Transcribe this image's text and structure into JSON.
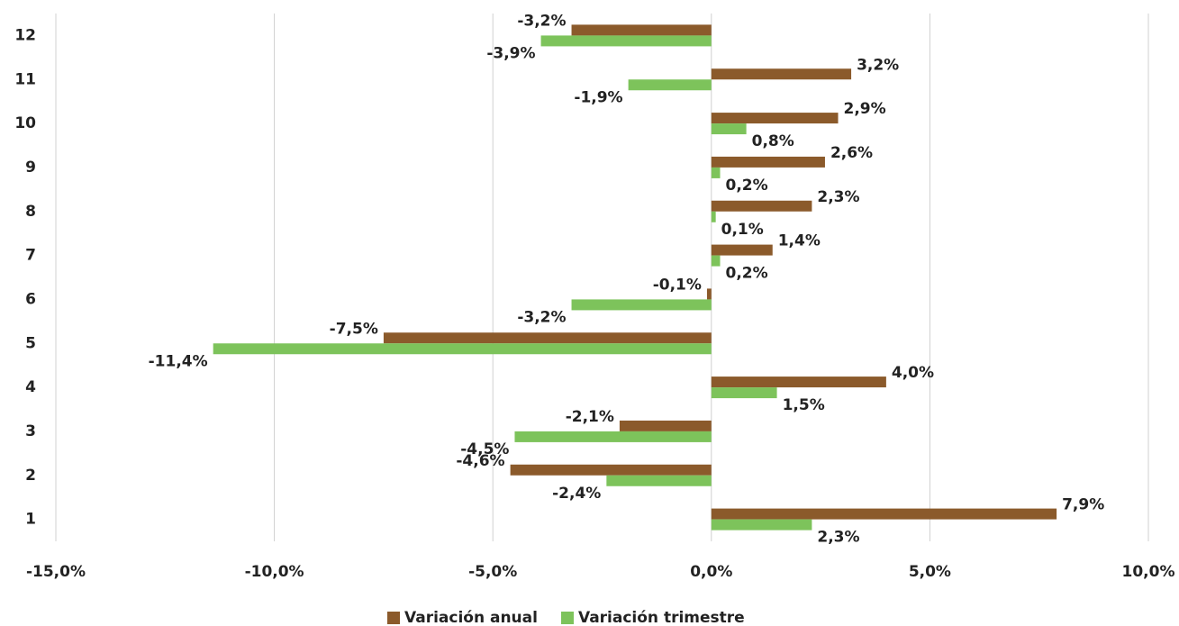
{
  "chart_data": {
    "type": "hbar",
    "categories": [
      "1",
      "2",
      "3",
      "4",
      "5",
      "6",
      "7",
      "8",
      "9",
      "10",
      "11",
      "12"
    ],
    "series": [
      {
        "name": "Variación anual",
        "color": "#8b5a2b",
        "values": [
          7.9,
          -4.6,
          -2.1,
          4.0,
          -7.5,
          -0.1,
          1.4,
          2.3,
          2.6,
          2.9,
          3.2,
          -3.2
        ],
        "value_labels": [
          "7,9%",
          "-4,6%",
          "-2,1%",
          "4,0%",
          "-7,5%",
          "-0,1%",
          "1,4%",
          "2,3%",
          "2,6%",
          "2,9%",
          "3,2%",
          "-3,2%"
        ]
      },
      {
        "name": "Variación trimestre",
        "color": "#7dc35b",
        "values": [
          2.3,
          -2.4,
          -4.5,
          1.5,
          -11.4,
          -3.2,
          0.2,
          0.1,
          0.2,
          0.8,
          -1.9,
          -3.9
        ],
        "value_labels": [
          "2,3%",
          "-2,4%",
          "-4,5%",
          "1,5%",
          "-11,4%",
          "-3,2%",
          "0,2%",
          "0,1%",
          "0,2%",
          "0,8%",
          "-1,9%",
          "-3,9%"
        ]
      }
    ],
    "xlim": [
      -15,
      10
    ],
    "xticks": [
      {
        "value": -15,
        "label": "-15,0%"
      },
      {
        "value": -10,
        "label": "-10,0%"
      },
      {
        "value": -5,
        "label": "-5,0%"
      },
      {
        "value": 0,
        "label": "0,0%"
      },
      {
        "value": 5,
        "label": "5,0%"
      },
      {
        "value": 10,
        "label": "10,0%"
      }
    ],
    "grid": true,
    "legend": "bottom"
  }
}
